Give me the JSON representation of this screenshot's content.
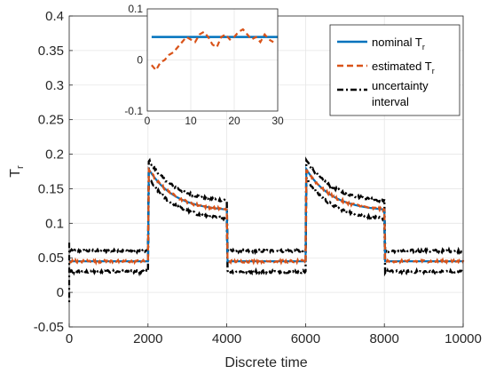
{
  "chart_data": {
    "type": "line",
    "xlabel": "Discrete time",
    "ylabel": {
      "main": "T",
      "sub": "r"
    },
    "xlim": [
      0,
      10000
    ],
    "ylim": [
      -0.05,
      0.4
    ],
    "xticks": [
      0,
      2000,
      4000,
      6000,
      8000,
      10000
    ],
    "yticks": [
      -0.05,
      0,
      0.05,
      0.1,
      0.15,
      0.2,
      0.25,
      0.3,
      0.35,
      0.4
    ],
    "grid": true,
    "legend_position": "top-right",
    "legend": [
      {
        "label": "nominal T",
        "sub": "r",
        "style": "solid",
        "color": "#0072BD"
      },
      {
        "label": "estimated T",
        "sub": "r",
        "style": "dashed",
        "color": "#D95319"
      },
      {
        "label": "uncertainty",
        "label2": "interval",
        "style": "dashdot",
        "color": "#000000"
      }
    ],
    "series": [
      {
        "name": "nominal T_r",
        "color": "#0072BD",
        "segments": [
          {
            "t": [
              0,
              2000
            ],
            "start": 0.045,
            "end": 0.045
          },
          {
            "t": [
              2000,
              4000
            ],
            "start": 0.18,
            "end": 0.12
          },
          {
            "t": [
              4000,
              6000
            ],
            "start": 0.045,
            "end": 0.045
          },
          {
            "t": [
              6000,
              8000
            ],
            "start": 0.18,
            "end": 0.12
          },
          {
            "t": [
              8000,
              10000
            ],
            "start": 0.045,
            "end": 0.045
          }
        ]
      },
      {
        "name": "estimated T_r",
        "color": "#D95319",
        "follows": "nominal T_r"
      },
      {
        "name": "uncertainty interval upper",
        "color": "#000000",
        "offset_low": 0.015,
        "offset_high": 0.013
      },
      {
        "name": "uncertainty interval lower",
        "color": "#000000",
        "offset_low": -0.015,
        "offset_high": -0.013
      }
    ],
    "inset": {
      "xlim": [
        0,
        30
      ],
      "ylim": [
        -0.1,
        0.1
      ],
      "xticks": [
        0,
        10,
        20,
        30
      ],
      "yticks": [
        -0.1,
        0,
        0.1
      ],
      "nominal": 0.045,
      "estimated_x": [
        1,
        2,
        3,
        4,
        5,
        6,
        7,
        8,
        9,
        10,
        11,
        12,
        13,
        14,
        15,
        16,
        17,
        18,
        19,
        20,
        21,
        22,
        23,
        24,
        25,
        26,
        27,
        28,
        29
      ],
      "estimated_y": [
        -0.01,
        -0.02,
        -0.005,
        0.0,
        0.01,
        0.015,
        0.025,
        0.035,
        0.045,
        0.04,
        0.035,
        0.05,
        0.055,
        0.045,
        0.03,
        0.025,
        0.045,
        0.05,
        0.04,
        0.045,
        0.055,
        0.06,
        0.05,
        0.04,
        0.045,
        0.035,
        0.05,
        0.04,
        0.035
      ]
    }
  }
}
